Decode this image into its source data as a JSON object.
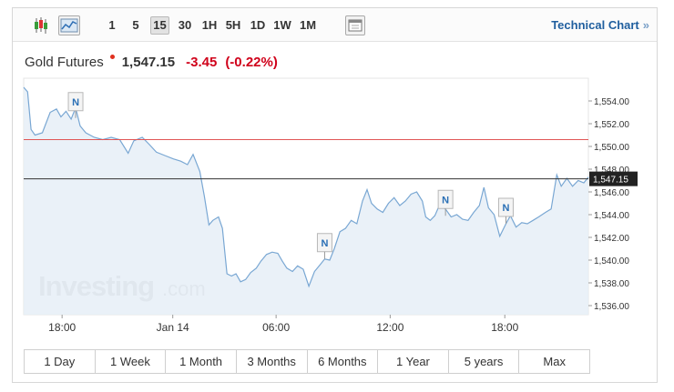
{
  "toolbar": {
    "intervals": [
      "1",
      "5",
      "15",
      "30",
      "1H",
      "5H",
      "1D",
      "1W",
      "1M"
    ],
    "active_interval": "15",
    "technical_chart_label": "Technical Chart",
    "technical_chart_chevron": "»",
    "icons": [
      "candlestick-icon",
      "line-chart-icon",
      "calendar-icon"
    ]
  },
  "quote": {
    "name": "Gold Futures",
    "price": "1,547.15",
    "change": "-3.45",
    "change_pct": "(-0.22%)",
    "colors": {
      "negative": "#d0021b",
      "marker": "#e0301e"
    }
  },
  "watermark": {
    "brand": "Investing",
    "suffix": ".com"
  },
  "range_buttons": [
    "1 Day",
    "1 Week",
    "1 Month",
    "3 Months",
    "6 Months",
    "1 Year",
    "5 years",
    "Max"
  ],
  "chart_data": {
    "type": "area",
    "x_tick_labels": [
      "18:00",
      "Jan 14",
      "06:00",
      "12:00",
      "18:00"
    ],
    "y_tick_labels": [
      "1,536.00",
      "1,538.00",
      "1,540.00",
      "1,542.00",
      "1,544.00",
      "1,546.00",
      "1,548.00",
      "1,550.00",
      "1,552.00",
      "1,554.00"
    ],
    "ylim": [
      1535.2,
      1556.0
    ],
    "reference_lines": {
      "previous_close": 1550.6,
      "last_price": 1547.15
    },
    "last_price_label": "1,547.15",
    "news_marker_label": "N",
    "news_markers": [
      {
        "x": 0.092,
        "y": 1552.5
      },
      {
        "x": 0.533,
        "y": 1540.1
      },
      {
        "x": 0.747,
        "y": 1543.9
      },
      {
        "x": 0.854,
        "y": 1543.2
      }
    ],
    "colors": {
      "line": "#79a7d3",
      "fill": "#e6eef7",
      "previous_close_line": "#e05555",
      "last_price_line": "#333333",
      "label_bg": "#222222"
    },
    "series": [
      {
        "values": [
          [
            0.0,
            1555.2
          ],
          [
            0.007,
            1554.8
          ],
          [
            0.013,
            1551.5
          ],
          [
            0.02,
            1551.0
          ],
          [
            0.033,
            1551.2
          ],
          [
            0.047,
            1553.0
          ],
          [
            0.058,
            1553.3
          ],
          [
            0.066,
            1552.6
          ],
          [
            0.075,
            1553.1
          ],
          [
            0.084,
            1552.4
          ],
          [
            0.092,
            1553.4
          ],
          [
            0.1,
            1551.8
          ],
          [
            0.11,
            1551.2
          ],
          [
            0.125,
            1550.8
          ],
          [
            0.14,
            1550.6
          ],
          [
            0.155,
            1550.8
          ],
          [
            0.17,
            1550.6
          ],
          [
            0.185,
            1549.4
          ],
          [
            0.195,
            1550.5
          ],
          [
            0.21,
            1550.8
          ],
          [
            0.222,
            1550.2
          ],
          [
            0.235,
            1549.5
          ],
          [
            0.25,
            1549.2
          ],
          [
            0.265,
            1548.9
          ],
          [
            0.278,
            1548.7
          ],
          [
            0.29,
            1548.4
          ],
          [
            0.3,
            1549.3
          ],
          [
            0.312,
            1547.8
          ],
          [
            0.32,
            1545.6
          ],
          [
            0.328,
            1543.1
          ],
          [
            0.335,
            1543.5
          ],
          [
            0.345,
            1543.8
          ],
          [
            0.352,
            1542.8
          ],
          [
            0.36,
            1538.8
          ],
          [
            0.368,
            1538.6
          ],
          [
            0.376,
            1538.8
          ],
          [
            0.384,
            1538.1
          ],
          [
            0.393,
            1538.3
          ],
          [
            0.402,
            1538.9
          ],
          [
            0.412,
            1539.3
          ],
          [
            0.42,
            1539.9
          ],
          [
            0.43,
            1540.5
          ],
          [
            0.44,
            1540.7
          ],
          [
            0.45,
            1540.6
          ],
          [
            0.458,
            1539.9
          ],
          [
            0.466,
            1539.3
          ],
          [
            0.476,
            1539.0
          ],
          [
            0.485,
            1539.5
          ],
          [
            0.495,
            1539.2
          ],
          [
            0.505,
            1537.7
          ],
          [
            0.515,
            1539.0
          ],
          [
            0.525,
            1539.6
          ],
          [
            0.533,
            1540.1
          ],
          [
            0.542,
            1540.0
          ],
          [
            0.55,
            1541.0
          ],
          [
            0.56,
            1542.5
          ],
          [
            0.57,
            1542.8
          ],
          [
            0.58,
            1543.5
          ],
          [
            0.59,
            1543.2
          ],
          [
            0.6,
            1545.2
          ],
          [
            0.608,
            1546.2
          ],
          [
            0.616,
            1545.0
          ],
          [
            0.626,
            1544.5
          ],
          [
            0.636,
            1544.2
          ],
          [
            0.646,
            1545.0
          ],
          [
            0.656,
            1545.5
          ],
          [
            0.666,
            1544.8
          ],
          [
            0.676,
            1545.2
          ],
          [
            0.686,
            1545.8
          ],
          [
            0.696,
            1546.0
          ],
          [
            0.706,
            1545.2
          ],
          [
            0.712,
            1543.8
          ],
          [
            0.72,
            1543.5
          ],
          [
            0.728,
            1543.9
          ],
          [
            0.736,
            1544.8
          ],
          [
            0.747,
            1544.5
          ],
          [
            0.757,
            1543.8
          ],
          [
            0.767,
            1544.0
          ],
          [
            0.777,
            1543.6
          ],
          [
            0.787,
            1543.5
          ],
          [
            0.797,
            1544.2
          ],
          [
            0.807,
            1544.8
          ],
          [
            0.815,
            1546.4
          ],
          [
            0.823,
            1544.6
          ],
          [
            0.833,
            1544.0
          ],
          [
            0.843,
            1542.1
          ],
          [
            0.854,
            1543.2
          ],
          [
            0.862,
            1543.9
          ],
          [
            0.872,
            1542.9
          ],
          [
            0.882,
            1543.3
          ],
          [
            0.892,
            1543.2
          ],
          [
            0.902,
            1543.5
          ],
          [
            0.912,
            1543.8
          ],
          [
            0.924,
            1544.2
          ],
          [
            0.934,
            1544.5
          ],
          [
            0.944,
            1547.5
          ],
          [
            0.952,
            1546.5
          ],
          [
            0.962,
            1547.2
          ],
          [
            0.972,
            1546.5
          ],
          [
            0.982,
            1547.0
          ],
          [
            0.992,
            1546.8
          ],
          [
            1.0,
            1547.3
          ]
        ]
      }
    ]
  }
}
